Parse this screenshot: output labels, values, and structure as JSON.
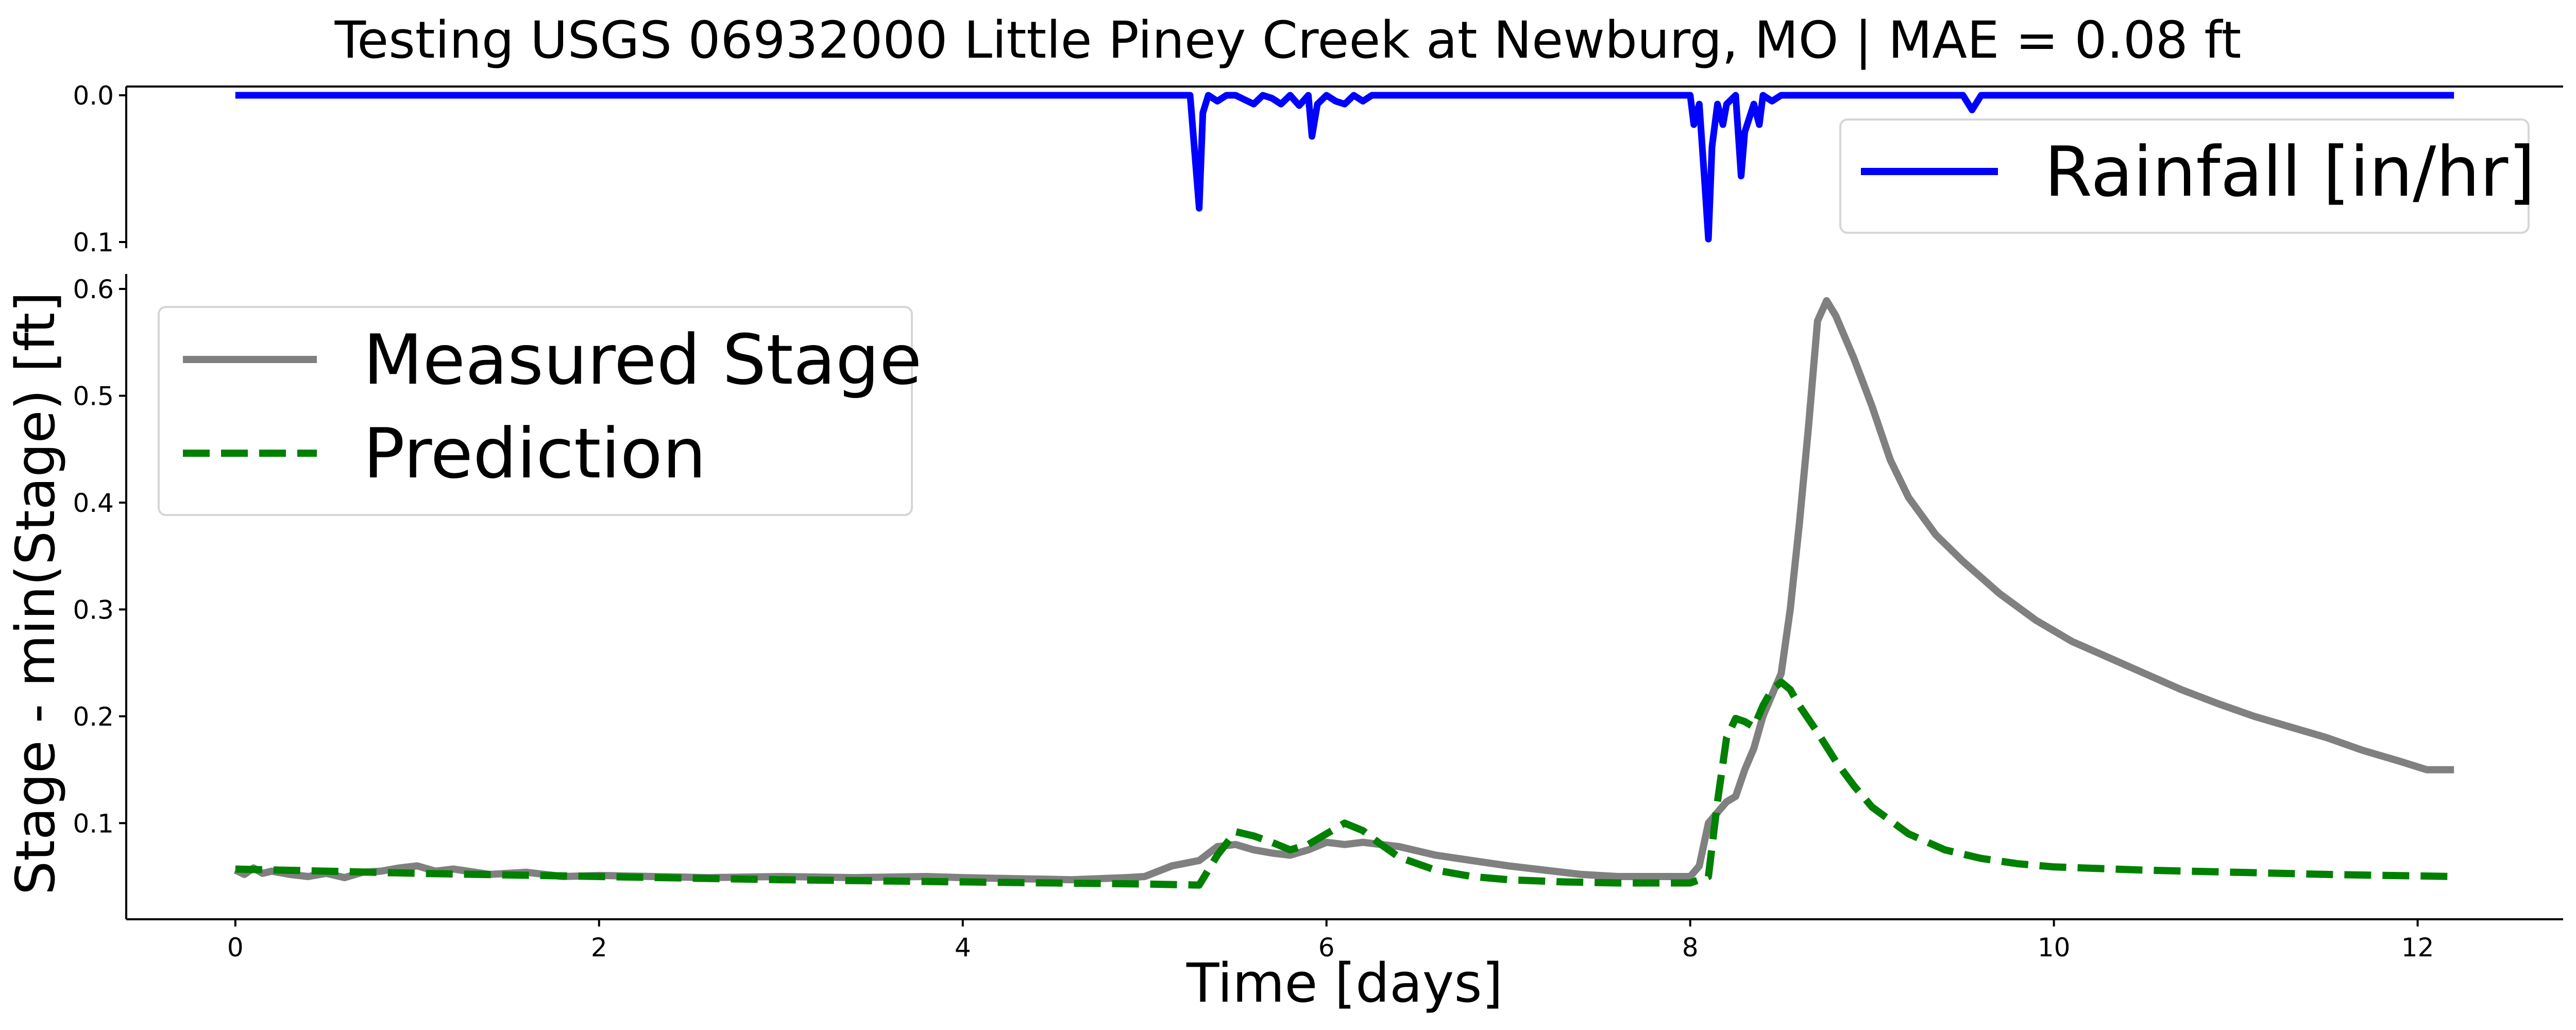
{
  "figure_title": "Testing USGS 06932000 Little Piney Creek at Newburg, MO | MAE = 0.08 ft",
  "colors": {
    "rainfall": "#0000ff",
    "measured": "#808080",
    "prediction": "#008000",
    "axis": "#000000",
    "legend_border": "#d6d6d6"
  },
  "chart_data": [
    {
      "type": "line",
      "panel": "rainfall",
      "title": "",
      "ylim": [
        0.1,
        0.0
      ],
      "y_inverted": true,
      "yticks": [
        "0.0",
        "0.1"
      ],
      "xlim": [
        -0.6,
        12.8
      ],
      "grid": false,
      "legend_placement": "upper right",
      "series": [
        {
          "name": "Rainfall [in/hr]",
          "x": [
            0,
            5.25,
            5.3,
            5.32,
            5.35,
            5.4,
            5.45,
            5.5,
            5.6,
            5.65,
            5.7,
            5.75,
            5.8,
            5.85,
            5.9,
            5.92,
            5.95,
            6.0,
            6.05,
            6.1,
            6.15,
            6.2,
            6.25,
            7.5,
            8.0,
            8.02,
            8.05,
            8.08,
            8.1,
            8.12,
            8.15,
            8.18,
            8.2,
            8.25,
            8.28,
            8.3,
            8.35,
            8.38,
            8.4,
            8.45,
            8.5,
            9.0,
            9.5,
            9.55,
            9.6,
            12.2
          ],
          "values": [
            0.0,
            0.0,
            0.077,
            0.012,
            0.0,
            0.004,
            0.0,
            0.0,
            0.006,
            0.0,
            0.002,
            0.006,
            0.0,
            0.007,
            0.0,
            0.028,
            0.006,
            0.0,
            0.004,
            0.006,
            0.0,
            0.004,
            0.0,
            0.0,
            0.0,
            0.02,
            0.006,
            0.06,
            0.098,
            0.035,
            0.006,
            0.02,
            0.006,
            0.0,
            0.055,
            0.025,
            0.006,
            0.02,
            0.0,
            0.004,
            0.0,
            0.0,
            0.0,
            0.01,
            0.0,
            0.0
          ]
        }
      ]
    },
    {
      "type": "line",
      "panel": "stage",
      "title": "",
      "xlabel": "Time [days]",
      "ylabel": "Stage - min(Stage) [ft]",
      "xlim": [
        -0.6,
        12.8
      ],
      "ylim": [
        0.01,
        0.614
      ],
      "xticks": [
        0,
        2,
        4,
        6,
        8,
        10,
        12
      ],
      "yticks": [
        0.1,
        0.2,
        0.3,
        0.4,
        0.5,
        0.6
      ],
      "grid": false,
      "legend_placement": "upper left",
      "series": [
        {
          "name": "Measured Stage",
          "style": "solid",
          "x": [
            0,
            0.05,
            0.1,
            0.15,
            0.2,
            0.3,
            0.4,
            0.5,
            0.6,
            0.7,
            0.8,
            0.9,
            1.0,
            1.1,
            1.2,
            1.4,
            1.6,
            1.8,
            2.0,
            2.3,
            2.6,
            3.0,
            3.4,
            3.8,
            4.0,
            4.3,
            4.6,
            4.9,
            5.0,
            5.15,
            5.3,
            5.4,
            5.5,
            5.6,
            5.7,
            5.8,
            5.9,
            6.0,
            6.1,
            6.2,
            6.4,
            6.6,
            6.8,
            7.0,
            7.2,
            7.4,
            7.6,
            7.8,
            8.0,
            8.05,
            8.1,
            8.15,
            8.2,
            8.25,
            8.3,
            8.35,
            8.4,
            8.45,
            8.5,
            8.55,
            8.6,
            8.65,
            8.7,
            8.75,
            8.8,
            8.9,
            9.0,
            9.1,
            9.2,
            9.35,
            9.5,
            9.7,
            9.9,
            10.1,
            10.3,
            10.5,
            10.7,
            10.9,
            11.1,
            11.3,
            11.5,
            11.7,
            11.9,
            12.05,
            12.2
          ],
          "values": [
            0.056,
            0.052,
            0.058,
            0.053,
            0.055,
            0.052,
            0.05,
            0.053,
            0.049,
            0.054,
            0.055,
            0.058,
            0.06,
            0.055,
            0.057,
            0.052,
            0.054,
            0.05,
            0.051,
            0.05,
            0.049,
            0.05,
            0.049,
            0.05,
            0.049,
            0.048,
            0.047,
            0.049,
            0.05,
            0.06,
            0.065,
            0.078,
            0.08,
            0.075,
            0.072,
            0.07,
            0.075,
            0.082,
            0.08,
            0.082,
            0.078,
            0.07,
            0.065,
            0.06,
            0.056,
            0.052,
            0.05,
            0.05,
            0.05,
            0.06,
            0.1,
            0.11,
            0.12,
            0.125,
            0.15,
            0.17,
            0.2,
            0.22,
            0.24,
            0.3,
            0.38,
            0.47,
            0.57,
            0.589,
            0.575,
            0.535,
            0.49,
            0.44,
            0.405,
            0.37,
            0.345,
            0.315,
            0.29,
            0.27,
            0.255,
            0.24,
            0.225,
            0.212,
            0.2,
            0.19,
            0.18,
            0.168,
            0.158,
            0.15,
            0.15
          ]
        },
        {
          "name": "Prediction",
          "style": "dashed",
          "x": [
            0,
            0.5,
            1.0,
            2.0,
            3.0,
            4.0,
            4.5,
            5.0,
            5.3,
            5.4,
            5.5,
            5.6,
            5.7,
            5.8,
            5.9,
            6.0,
            6.1,
            6.2,
            6.3,
            6.4,
            6.6,
            6.8,
            7.0,
            7.3,
            7.6,
            7.9,
            8.0,
            8.1,
            8.15,
            8.2,
            8.25,
            8.3,
            8.35,
            8.4,
            8.45,
            8.5,
            8.55,
            8.6,
            8.7,
            8.8,
            8.9,
            9.0,
            9.2,
            9.4,
            9.6,
            9.8,
            10.0,
            10.5,
            11.0,
            11.5,
            12.2
          ],
          "values": [
            0.057,
            0.055,
            0.053,
            0.05,
            0.047,
            0.045,
            0.044,
            0.043,
            0.042,
            0.07,
            0.092,
            0.088,
            0.082,
            0.075,
            0.08,
            0.09,
            0.1,
            0.093,
            0.08,
            0.068,
            0.056,
            0.05,
            0.047,
            0.045,
            0.044,
            0.044,
            0.044,
            0.05,
            0.12,
            0.18,
            0.198,
            0.195,
            0.19,
            0.21,
            0.225,
            0.232,
            0.225,
            0.21,
            0.185,
            0.158,
            0.135,
            0.115,
            0.09,
            0.075,
            0.067,
            0.062,
            0.059,
            0.056,
            0.054,
            0.052,
            0.05
          ]
        }
      ]
    }
  ]
}
